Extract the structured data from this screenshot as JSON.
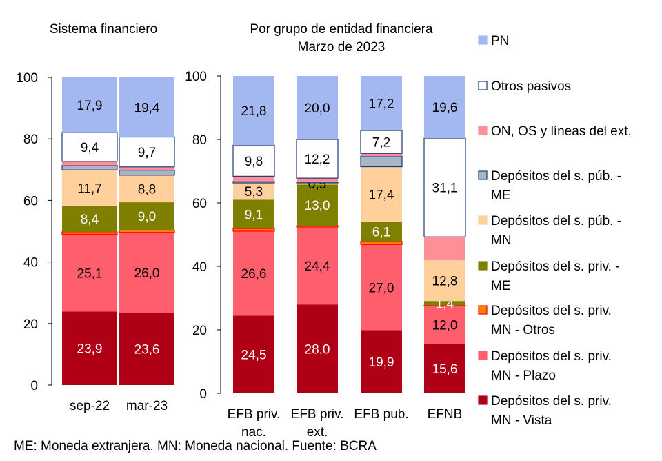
{
  "chart_data": [
    {
      "type": "bar",
      "stacked": true,
      "title": "Sistema financiero",
      "categories": [
        "sep-22",
        "mar-23"
      ],
      "ylim": [
        0,
        100
      ],
      "yticks": [
        "0",
        "20",
        "40",
        "60",
        "80",
        "100"
      ],
      "grid": false,
      "series": [
        {
          "name": "Depósitos del s. priv. MN - Vista",
          "values": [
            23.9,
            23.6
          ],
          "labels": [
            "23,9",
            "23,6"
          ]
        },
        {
          "name": "Depósitos del s. priv. MN - Plazo",
          "values": [
            25.1,
            26.0
          ],
          "labels": [
            "25,1",
            "26,0"
          ]
        },
        {
          "name": "Depósitos del s. priv. MN - Otros",
          "values": [
            0.8,
            0.8
          ],
          "labels": [
            null,
            null
          ]
        },
        {
          "name": "Depósitos del s. priv. - ME",
          "values": [
            8.4,
            9.0
          ],
          "labels": [
            "8,4",
            "9,0"
          ]
        },
        {
          "name": "Depósitos del s. púb. - MN",
          "values": [
            11.7,
            8.8
          ],
          "labels": [
            "11,7",
            "8,8"
          ]
        },
        {
          "name": "Depósitos del s. púb. - ME",
          "values": [
            1.5,
            1.6
          ],
          "labels": [
            null,
            null
          ]
        },
        {
          "name": "ON, OS y líneas del ext.",
          "values": [
            1.3,
            1.1
          ],
          "labels": [
            null,
            null
          ]
        },
        {
          "name": "Otros pasivos",
          "values": [
            9.4,
            9.7
          ],
          "labels": [
            "9,4",
            "9,7"
          ]
        },
        {
          "name": "PN",
          "values": [
            17.9,
            19.4
          ],
          "labels": [
            "17,9",
            "19,4"
          ]
        }
      ]
    },
    {
      "type": "bar",
      "stacked": true,
      "title": "Por grupo de entidad financiera",
      "subtitle": "Marzo de 2023",
      "categories": [
        [
          "EFB priv.",
          "nac."
        ],
        [
          "EFB priv.",
          "ext."
        ],
        [
          "EFB pub."
        ],
        [
          "EFNB"
        ]
      ],
      "ylim": [
        0,
        100
      ],
      "yticks": [
        "0",
        "20",
        "40",
        "60",
        "80",
        "100"
      ],
      "grid": false,
      "series": [
        {
          "name": "Depósitos del s. priv. MN - Vista",
          "values": [
            24.5,
            28.0,
            19.9,
            15.6
          ],
          "labels": [
            "24,5",
            "28,0",
            "19,9",
            "15,6"
          ]
        },
        {
          "name": "Depósitos del s. priv. MN - Plazo",
          "values": [
            26.6,
            24.4,
            27.0,
            12.0
          ],
          "labels": [
            "26,6",
            "24,4",
            "27,0",
            "12,0"
          ]
        },
        {
          "name": "Depósitos del s. priv. MN - Otros",
          "values": [
            0.8,
            0.4,
            1.0,
            0.1
          ],
          "labels": [
            null,
            null,
            null,
            null
          ]
        },
        {
          "name": "Depósitos del s. priv. - ME",
          "values": [
            9.1,
            13.0,
            6.1,
            1.4
          ],
          "labels": [
            "9,1",
            "13,0",
            "6,1",
            "1,4"
          ]
        },
        {
          "name": "Depósitos del s. púb. - MN",
          "values": [
            5.3,
            0.5,
            17.4,
            12.8
          ],
          "labels": [
            "5,3",
            "0,5",
            "17,4",
            "12,8"
          ]
        },
        {
          "name": "Depósitos del s. púb. - ME",
          "values": [
            0.5,
            0.3,
            3.4,
            0.0
          ],
          "labels": [
            null,
            null,
            null,
            null
          ]
        },
        {
          "name": "ON, OS y líneas del ext.",
          "values": [
            1.6,
            1.2,
            0.8,
            7.4
          ],
          "labels": [
            null,
            null,
            null,
            null
          ]
        },
        {
          "name": "Otros pasivos",
          "values": [
            9.8,
            12.2,
            7.2,
            31.1
          ],
          "labels": [
            "9,8",
            "12,2",
            "7,2",
            "31,1"
          ]
        },
        {
          "name": "PN",
          "values": [
            21.8,
            20.0,
            17.2,
            19.6
          ],
          "labels": [
            "21,8",
            "20,0",
            "17,2",
            "19,6"
          ]
        }
      ]
    }
  ],
  "legend": {
    "placement": "right",
    "items": [
      {
        "lines": [
          "PN"
        ],
        "color": "#a3b8f0",
        "border": "#a3b8f0"
      },
      {
        "lines": [
          "Otros pasivos"
        ],
        "color": "#ffffff",
        "border": "#1f3b73"
      },
      {
        "lines": [
          "ON, OS y líneas del ext."
        ],
        "color": "#ff8f97",
        "border": "#ff8f97"
      },
      {
        "lines": [
          "Depósitos del s. púb. -",
          "ME"
        ],
        "color": "#aab4c8",
        "border": "#1f3b73"
      },
      {
        "lines": [
          "Depósitos del s. púb. -",
          "MN"
        ],
        "color": "#ffcf9c",
        "border": "#ffcf9c"
      },
      {
        "lines": [
          "Depósitos del s. priv. -",
          "ME"
        ],
        "color": "#7f7f00",
        "border": "#7f7f00"
      },
      {
        "lines": [
          "Depósitos del s. priv.",
          "MN - Otros"
        ],
        "color": "#ff8000",
        "border": "#ff0000"
      },
      {
        "lines": [
          "Depósitos del s. priv.",
          "MN - Plazo"
        ],
        "color": "#ff5f6d",
        "border": "#ff5f6d"
      },
      {
        "lines": [
          "Depósitos del s. priv.",
          "MN - Vista"
        ],
        "color": "#b00016",
        "border": "#b00016"
      }
    ]
  },
  "series_style": [
    {
      "color": "#b00016",
      "border": "#b00016",
      "label_color": "#ffffff"
    },
    {
      "color": "#ff5f6d",
      "border": "#ff5f6d",
      "label_color": "#000000"
    },
    {
      "color": "#ff8000",
      "border": "#ff0000",
      "label_color": "#000000"
    },
    {
      "color": "#7f7f00",
      "border": "#7f7f00",
      "label_color": "#ffffff"
    },
    {
      "color": "#ffcf9c",
      "border": "#ffcf9c",
      "label_color": "#000000"
    },
    {
      "color": "#aab4c8",
      "border": "#1f3b73",
      "label_color": "#000000"
    },
    {
      "color": "#ff8f97",
      "border": "#ff8f97",
      "label_color": "#000000"
    },
    {
      "color": "#ffffff",
      "border": "#1f3b73",
      "label_color": "#000000"
    },
    {
      "color": "#a3b8f0",
      "border": "#a3b8f0",
      "label_color": "#000000"
    }
  ],
  "footnote": "ME: Moneda extranjera. MN: Moneda nacional. Fuente: BCRA"
}
